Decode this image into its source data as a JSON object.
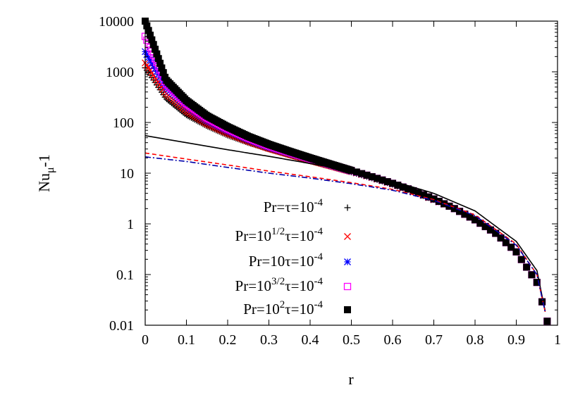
{
  "chart_data": {
    "type": "scatter",
    "title": "",
    "xlabel": "r",
    "ylabel": "Nu_μ-1",
    "ylabel_main": "Nu",
    "ylabel_sub": "μ",
    "ylabel_tail": "-1",
    "xlim": [
      0,
      1
    ],
    "ylim": [
      0.01,
      10000
    ],
    "yscale": "log",
    "x_ticks": [
      "0",
      "0.1",
      "0.2",
      "0.3",
      "0.4",
      "0.5",
      "0.6",
      "0.7",
      "0.8",
      "0.9",
      "1"
    ],
    "y_ticks": [
      "0.01",
      "0.1",
      "1",
      "10",
      "100",
      "1000",
      "10000"
    ],
    "x_tick_values": [
      0,
      0.1,
      0.2,
      0.3,
      0.4,
      0.5,
      0.6,
      0.7,
      0.8,
      0.9,
      1.0
    ],
    "y_tick_values": [
      0.01,
      0.1,
      1,
      10,
      100,
      1000,
      10000
    ],
    "grid": false,
    "legend_position": "center-right",
    "series": [
      {
        "name": "Pr=τ=10^-4",
        "label_parts": {
          "a": "Pr=τ=10",
          "sup": "-4"
        },
        "marker": "plus",
        "color": "#000000",
        "points": [
          [
            0.0,
            1200
          ],
          [
            0.05,
            300
          ],
          [
            0.1,
            140
          ],
          [
            0.15,
            85
          ],
          [
            0.2,
            56
          ],
          [
            0.25,
            40
          ],
          [
            0.3,
            30
          ],
          [
            0.35,
            23
          ],
          [
            0.4,
            17.5
          ],
          [
            0.45,
            13.5
          ],
          [
            0.5,
            10.5
          ],
          [
            0.55,
            8
          ],
          [
            0.6,
            6
          ],
          [
            0.65,
            4.3
          ],
          [
            0.7,
            3
          ],
          [
            0.75,
            2
          ],
          [
            0.8,
            1.2
          ],
          [
            0.85,
            0.65
          ],
          [
            0.9,
            0.28
          ],
          [
            0.95,
            0.07
          ],
          [
            0.975,
            0.012
          ]
        ]
      },
      {
        "name": "Pr=10^1/2τ=10^-4",
        "label_parts": {
          "a": "Pr=10",
          "sup": "1/2",
          "b": "τ=10",
          "sup2": "-4"
        },
        "marker": "cross",
        "color": "#ff0000",
        "points": [
          [
            0.0,
            1500
          ],
          [
            0.05,
            380
          ],
          [
            0.1,
            170
          ],
          [
            0.15,
            95
          ],
          [
            0.2,
            62
          ],
          [
            0.25,
            43
          ],
          [
            0.3,
            31
          ],
          [
            0.35,
            23.5
          ],
          [
            0.4,
            18
          ],
          [
            0.45,
            14
          ],
          [
            0.5,
            10.8
          ],
          [
            0.55,
            8.2
          ],
          [
            0.6,
            6.1
          ],
          [
            0.65,
            4.4
          ],
          [
            0.7,
            3
          ],
          [
            0.75,
            2
          ],
          [
            0.8,
            1.2
          ],
          [
            0.85,
            0.65
          ],
          [
            0.9,
            0.28
          ],
          [
            0.95,
            0.07
          ],
          [
            0.975,
            0.012
          ]
        ]
      },
      {
        "name": "Pr=10τ=10^-4",
        "label_parts": {
          "a": "Pr=10τ=10",
          "sup": "-4"
        },
        "marker": "star",
        "color": "#0000ff",
        "points": [
          [
            0.0,
            2500
          ],
          [
            0.05,
            500
          ],
          [
            0.1,
            210
          ],
          [
            0.15,
            110
          ],
          [
            0.2,
            70
          ],
          [
            0.25,
            47
          ],
          [
            0.3,
            33
          ],
          [
            0.35,
            25
          ],
          [
            0.4,
            19
          ],
          [
            0.45,
            14.5
          ],
          [
            0.5,
            11
          ],
          [
            0.55,
            8.4
          ],
          [
            0.6,
            6.2
          ],
          [
            0.65,
            4.5
          ],
          [
            0.7,
            3.1
          ],
          [
            0.75,
            2
          ],
          [
            0.8,
            1.2
          ],
          [
            0.85,
            0.65
          ],
          [
            0.9,
            0.28
          ],
          [
            0.95,
            0.07
          ],
          [
            0.975,
            0.012
          ]
        ]
      },
      {
        "name": "Pr=10^3/2τ=10^-4",
        "label_parts": {
          "a": "Pr=10",
          "sup": "3/2",
          "b": "τ=10",
          "sup2": "-4"
        },
        "marker": "square-open",
        "color": "#ff00ff",
        "points": [
          [
            0.0,
            5000
          ],
          [
            0.05,
            600
          ],
          [
            0.1,
            240
          ],
          [
            0.15,
            125
          ],
          [
            0.2,
            76
          ],
          [
            0.25,
            50
          ],
          [
            0.3,
            35
          ],
          [
            0.35,
            26
          ],
          [
            0.4,
            19.5
          ],
          [
            0.45,
            14.8
          ],
          [
            0.5,
            11.2
          ],
          [
            0.55,
            8.5
          ],
          [
            0.6,
            6.3
          ],
          [
            0.65,
            4.5
          ],
          [
            0.7,
            3.1
          ],
          [
            0.75,
            2
          ],
          [
            0.8,
            1.2
          ],
          [
            0.85,
            0.65
          ],
          [
            0.9,
            0.28
          ],
          [
            0.95,
            0.07
          ],
          [
            0.975,
            0.012
          ]
        ]
      },
      {
        "name": "Pr=10^2τ=10^-4",
        "label_parts": {
          "a": "Pr=10",
          "sup": "2",
          "b": "τ=10",
          "sup2": "-4"
        },
        "marker": "square-filled",
        "color": "#000000",
        "points": [
          [
            0.0,
            10000
          ],
          [
            0.05,
            700
          ],
          [
            0.1,
            270
          ],
          [
            0.15,
            135
          ],
          [
            0.2,
            82
          ],
          [
            0.25,
            53
          ],
          [
            0.3,
            37
          ],
          [
            0.35,
            27
          ],
          [
            0.4,
            20
          ],
          [
            0.45,
            15
          ],
          [
            0.5,
            11.3
          ],
          [
            0.55,
            8.5
          ],
          [
            0.6,
            6.3
          ],
          [
            0.65,
            4.5
          ],
          [
            0.7,
            3.1
          ],
          [
            0.75,
            2
          ],
          [
            0.8,
            1.2
          ],
          [
            0.85,
            0.65
          ],
          [
            0.9,
            0.28
          ],
          [
            0.95,
            0.07
          ],
          [
            0.975,
            0.012
          ]
        ]
      }
    ],
    "lines": [
      {
        "name": "asymptotic-solid",
        "style": "solid",
        "color": "#000000",
        "points": [
          [
            0.0,
            55
          ],
          [
            0.1,
            40
          ],
          [
            0.2,
            29
          ],
          [
            0.3,
            21.5
          ],
          [
            0.4,
            15.5
          ],
          [
            0.5,
            11
          ],
          [
            0.6,
            7
          ],
          [
            0.7,
            4
          ],
          [
            0.8,
            1.8
          ],
          [
            0.9,
            0.45
          ],
          [
            0.95,
            0.12
          ],
          [
            0.975,
            0.012
          ]
        ]
      },
      {
        "name": "asymptotic-red-dashed",
        "style": "dashed",
        "color": "#ff0000",
        "points": [
          [
            0.0,
            25
          ],
          [
            0.1,
            19
          ],
          [
            0.2,
            14.5
          ],
          [
            0.3,
            11
          ],
          [
            0.4,
            8.5
          ],
          [
            0.5,
            6.5
          ],
          [
            0.6,
            4.8
          ],
          [
            0.7,
            3
          ],
          [
            0.8,
            1.5
          ],
          [
            0.9,
            0.4
          ],
          [
            0.95,
            0.1
          ],
          [
            0.975,
            0.012
          ]
        ]
      },
      {
        "name": "asymptotic-blue-dashdot",
        "style": "dashdot",
        "color": "#0000aa",
        "points": [
          [
            0.0,
            21
          ],
          [
            0.1,
            17
          ],
          [
            0.2,
            13
          ],
          [
            0.3,
            10
          ],
          [
            0.4,
            8
          ],
          [
            0.5,
            6.2
          ],
          [
            0.6,
            4.6
          ],
          [
            0.7,
            2.9
          ],
          [
            0.8,
            1.45
          ],
          [
            0.9,
            0.38
          ],
          [
            0.95,
            0.1
          ],
          [
            0.975,
            0.012
          ]
        ]
      }
    ]
  }
}
